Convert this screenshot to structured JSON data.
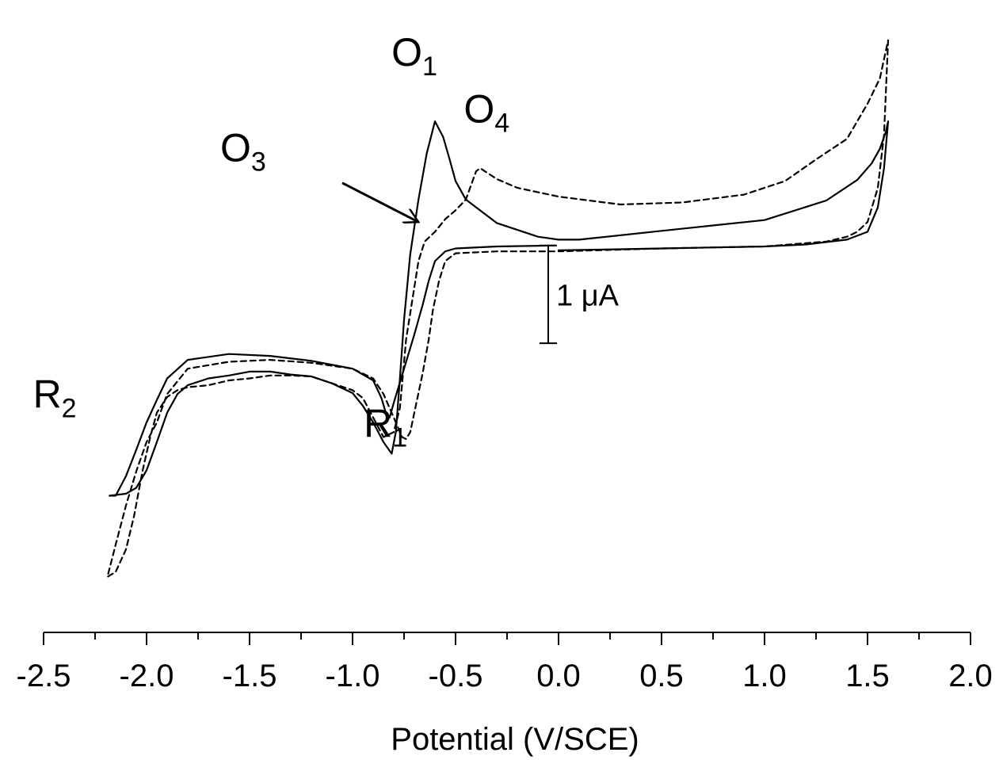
{
  "chart_data": {
    "type": "line",
    "xlabel": "Potential (V/SCE)",
    "ylabel": "",
    "xlim": [
      -2.5,
      2.0
    ],
    "ylim": [
      -3.65,
      2.35
    ],
    "x_ticks": [
      "-2.5",
      "-2.0",
      "-1.5",
      "-1.0",
      "-0.5",
      "0.0",
      "0.5",
      "1.0",
      "1.5",
      "2.0"
    ],
    "y_axis_visible": false,
    "grid": false,
    "scale_bar": {
      "label": "1 μA",
      "current_from": -1.04,
      "current_to": -0.04,
      "potential": -0.05
    },
    "peak_labels": [
      {
        "main": "O",
        "sub": "1",
        "x": -0.7,
        "y": 1.8,
        "anchor": "middle"
      },
      {
        "main": "O",
        "sub": "4",
        "x": -0.46,
        "y": 1.22,
        "anchor": "start"
      },
      {
        "main": "O",
        "sub": "3",
        "x": -1.42,
        "y": 0.82,
        "anchor": "end"
      },
      {
        "main": "R",
        "sub": "2",
        "x": -2.34,
        "y": -1.7,
        "anchor": "end"
      },
      {
        "main": "R",
        "sub": "1",
        "x": -0.84,
        "y": -2.0,
        "anchor": "middle"
      }
    ],
    "arrow": {
      "from": [
        -1.05,
        0.6
      ],
      "to": [
        -0.68,
        0.2
      ]
    },
    "series": [
      {
        "style": "solid",
        "x": [
          -0.02,
          -0.3,
          -0.5,
          -0.55,
          -0.6,
          -0.63,
          -0.66,
          -0.7,
          -0.75,
          -0.8,
          -0.82,
          -0.84,
          -0.86,
          -0.9,
          -1.0,
          -1.2,
          -1.4,
          -1.6,
          -1.8,
          -1.9,
          -1.95,
          -2.0,
          -2.05,
          -2.1,
          -2.15,
          -2.18,
          -2.1,
          -2.05,
          -2.0,
          -1.95,
          -1.9,
          -1.85,
          -1.8,
          -1.7,
          -1.6,
          -1.5,
          -1.4,
          -1.3,
          -1.2,
          -1.1,
          -1.0,
          -0.95,
          -0.9,
          -0.85,
          -0.81,
          -0.79,
          -0.77,
          -0.75,
          -0.72,
          -0.68,
          -0.64,
          -0.6,
          -0.56,
          -0.53,
          -0.5,
          -0.45,
          -0.3,
          -0.1,
          0.0,
          0.05,
          0.1,
          0.5,
          1.0,
          1.3,
          1.45,
          1.52,
          1.56,
          1.59,
          1.6,
          1.58,
          1.55,
          1.5,
          1.4,
          1.2,
          1.0,
          0.5,
          0.0
        ],
        "y": [
          -0.04,
          -0.05,
          -0.07,
          -0.1,
          -0.2,
          -0.4,
          -0.65,
          -0.95,
          -1.3,
          -1.65,
          -1.8,
          -1.74,
          -1.6,
          -1.42,
          -1.3,
          -1.22,
          -1.17,
          -1.15,
          -1.21,
          -1.4,
          -1.62,
          -1.85,
          -2.13,
          -2.4,
          -2.6,
          -2.6,
          -2.58,
          -2.52,
          -2.34,
          -2.05,
          -1.75,
          -1.56,
          -1.47,
          -1.4,
          -1.37,
          -1.33,
          -1.33,
          -1.36,
          -1.38,
          -1.45,
          -1.55,
          -1.68,
          -1.85,
          -2.05,
          -2.17,
          -1.95,
          -1.4,
          -0.8,
          -0.13,
          0.43,
          0.9,
          1.23,
          1.07,
          0.85,
          0.62,
          0.43,
          0.19,
          0.05,
          0.02,
          0.02,
          0.02,
          0.11,
          0.22,
          0.42,
          0.63,
          0.8,
          0.95,
          1.13,
          1.23,
          0.75,
          0.35,
          0.1,
          0.02,
          -0.03,
          -0.05,
          -0.07,
          -0.09
        ]
      },
      {
        "style": "dashed",
        "x": [
          -0.02,
          -0.3,
          -0.5,
          -0.55,
          -0.58,
          -0.61,
          -0.63,
          -0.66,
          -0.7,
          -0.72,
          -0.74,
          -0.76,
          -0.8,
          -0.85,
          -0.9,
          -1.0,
          -1.2,
          -1.4,
          -1.6,
          -1.8,
          -1.9,
          -1.95,
          -2.0,
          -2.05,
          -2.1,
          -2.15,
          -2.19,
          -2.15,
          -2.1,
          -2.06,
          -2.02,
          -1.98,
          -1.95,
          -1.9,
          -1.85,
          -1.8,
          -1.7,
          -1.6,
          -1.5,
          -1.4,
          -1.3,
          -1.2,
          -1.1,
          -1.0,
          -0.95,
          -0.9,
          -0.85,
          -0.8,
          -0.77,
          -0.74,
          -0.71,
          -0.68,
          -0.65,
          -0.6,
          -0.55,
          -0.5,
          -0.45,
          -0.4,
          -0.38,
          -0.3,
          -0.2,
          0.0,
          0.3,
          0.6,
          0.9,
          1.1,
          1.25,
          1.4,
          1.5,
          1.56,
          1.6,
          1.58,
          1.55,
          1.5,
          1.45,
          1.4,
          1.3,
          1.0,
          0.5,
          0.0
        ],
        "y": [
          -0.1,
          -0.1,
          -0.12,
          -0.2,
          -0.4,
          -0.7,
          -1.0,
          -1.35,
          -1.75,
          -1.95,
          -2.02,
          -2.0,
          -1.8,
          -1.56,
          -1.4,
          -1.3,
          -1.24,
          -1.21,
          -1.23,
          -1.3,
          -1.56,
          -1.85,
          -2.05,
          -2.35,
          -2.7,
          -3.1,
          -3.43,
          -3.38,
          -3.15,
          -2.8,
          -2.35,
          -1.98,
          -1.75,
          -1.59,
          -1.52,
          -1.49,
          -1.47,
          -1.42,
          -1.4,
          -1.37,
          -1.37,
          -1.38,
          -1.45,
          -1.52,
          -1.6,
          -1.8,
          -2.0,
          -1.95,
          -1.7,
          -1.0,
          -0.6,
          -0.2,
          0.0,
          0.1,
          0.23,
          0.32,
          0.43,
          0.72,
          0.75,
          0.64,
          0.55,
          0.46,
          0.38,
          0.4,
          0.48,
          0.62,
          0.84,
          1.05,
          1.41,
          1.67,
          2.06,
          1.09,
          0.55,
          0.2,
          0.1,
          0.05,
          0.0,
          -0.05,
          -0.07,
          -0.1
        ]
      }
    ]
  }
}
